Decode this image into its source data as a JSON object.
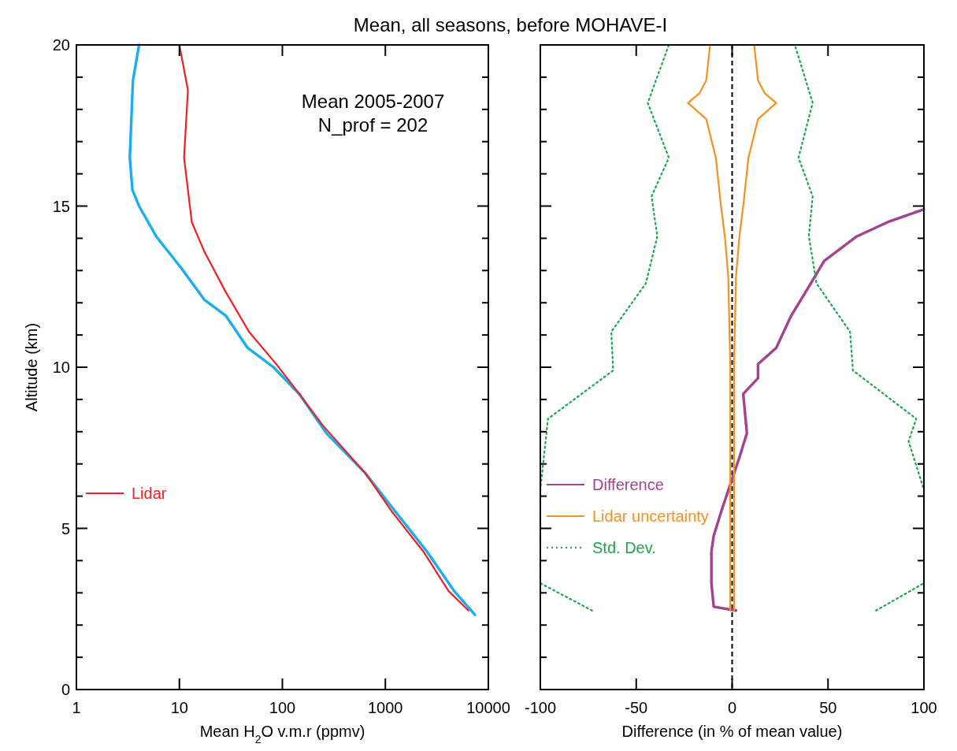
{
  "chart_data": [
    {
      "type": "line",
      "title": "Mean, all seasons, before MOHAVE-I",
      "xlabel": "Mean H$_{2}$O v.m.r (ppmv)",
      "ylabel": "Altitude (km)",
      "log": "x",
      "xlim": [
        1,
        10000
      ],
      "xticks": [
        1,
        10,
        100,
        1000,
        10000
      ],
      "ylim": [
        0,
        20
      ],
      "yticks": [
        0,
        {
          "value": 1,
          "label": null
        },
        {
          "value": 2,
          "label": null
        },
        {
          "value": 3,
          "label": null
        },
        {
          "value": 4,
          "label": null
        },
        5,
        {
          "value": 6,
          "label": null
        },
        {
          "value": 7,
          "label": null
        },
        {
          "value": 8,
          "label": null
        },
        {
          "value": 9,
          "label": null
        },
        10,
        {
          "value": 11,
          "label": null
        },
        {
          "value": 12,
          "label": null
        },
        {
          "value": 13,
          "label": null
        },
        {
          "value": 14,
          "label": null
        },
        15,
        {
          "value": 16,
          "label": null
        },
        {
          "value": 17,
          "label": null
        },
        {
          "value": 18,
          "label": null
        },
        {
          "value": 19,
          "label": null
        },
        20
      ],
      "grid": false,
      "legend": "left",
      "line_style": "solid",
      "marker": "none",
      "annotations": [
        "Mean 2005-2007",
        "N_prof = 202"
      ],
      "series": [
        {
          "color": "#1aaeef",
          "x": [
            4.06,
            3.54,
            3.3,
            3.5,
            4.06,
            5.95,
            10.3,
            17.4,
            28.2,
            46,
            82,
            146,
            268,
            636,
            1265,
            2540,
            4650,
            7400
          ],
          "values": [
            20,
            18.9,
            16.5,
            15.5,
            15,
            14.06,
            13.1,
            12.1,
            11.6,
            10.6,
            10,
            9.17,
            7.95,
            6.72,
            5.5,
            4.28,
            3.06,
            2.32
          ]
        },
        {
          "name": "Lidar",
          "color": "#ee2024",
          "x": [
            10,
            12.1,
            11.1,
            13.2,
            17.4,
            28,
            47.4,
            87,
            146,
            246,
            636,
            1170,
            2340,
            4100,
            6400
          ],
          "values": [
            20,
            18.6,
            16.5,
            14.5,
            13.6,
            12.35,
            11.1,
            10.1,
            9.17,
            8.2,
            6.72,
            5.5,
            4.28,
            3.06,
            2.45
          ]
        }
      ]
    },
    {
      "type": "line",
      "xlabel": "Difference (in % of mean value)",
      "xlim": [
        -100,
        100
      ],
      "xticks": [
        -100,
        -50,
        0,
        50,
        100
      ],
      "ylim": [
        0,
        20
      ],
      "yticks": [
        0,
        {
          "value": 1,
          "label": null
        },
        {
          "value": 2,
          "label": null
        },
        {
          "value": 3,
          "label": null
        },
        {
          "value": 4,
          "label": null
        },
        5,
        {
          "value": 6,
          "label": null
        },
        {
          "value": 7,
          "label": null
        },
        {
          "value": 8,
          "label": null
        },
        {
          "value": 9,
          "label": null
        },
        10,
        {
          "value": 11,
          "label": null
        },
        {
          "value": 12,
          "label": null
        },
        {
          "value": 13,
          "label": null
        },
        {
          "value": 14,
          "label": null
        },
        15,
        {
          "value": 16,
          "label": null
        },
        {
          "value": 17,
          "label": null
        },
        {
          "value": 18,
          "label": null
        },
        {
          "value": 19,
          "label": null
        },
        20
      ],
      "tick_labels": "x",
      "grid": false,
      "legend": "bottom left",
      "marker": "none",
      "ref_lines": [
        {
          "axis": "x",
          "value": 0,
          "color": "#000000",
          "line_style": "dashed"
        }
      ],
      "series": [
        {
          "name": "Difference",
          "color": "#a3438f",
          "line_style": "solid",
          "x": [
            2,
            -9.6,
            -10.8,
            -10.8,
            -9.6,
            -5.8,
            -1.9,
            3.8,
            7.7,
            5.8,
            13.5,
            13.5,
            23,
            30.8,
            38.5,
            48,
            65,
            81,
            100
          ],
          "values": [
            2.45,
            2.57,
            3.3,
            4.28,
            4.77,
            5.5,
            6.2,
            7.2,
            7.95,
            9.17,
            9.66,
            10.1,
            10.6,
            11.6,
            12.35,
            13.3,
            14.06,
            14.5,
            14.9
          ]
        },
        {
          "name": "Lidar uncertainty",
          "color": "#f7901e",
          "line_style": "solid",
          "x": [
            1,
            1,
            1,
            2,
            3.8,
            5.8,
            8.5,
            13.5,
            23,
            17,
            13.5,
            11.5
          ],
          "values": [
            2.45,
            6.2,
            10.1,
            12.8,
            14.06,
            15,
            16.5,
            17.7,
            18.2,
            18.5,
            18.9,
            20
          ]
        },
        {
          "color": "#f7901e",
          "line_style": "solid",
          "x": [
            -1,
            -1,
            -1,
            -2,
            -3.8,
            -5.8,
            -8.5,
            -13.5,
            -23,
            -17,
            -13.5,
            -11.5
          ],
          "values": [
            2.45,
            6.2,
            10.1,
            12.8,
            14.06,
            15,
            16.5,
            17.7,
            18.2,
            18.5,
            18.9,
            20
          ]
        },
        {
          "name": "Std. Dev.",
          "color": "#1aa64a",
          "line_style": "dotted",
          "x": [
            75,
            100,
            100,
            92,
            96,
            63,
            61.5,
            44,
            40,
            42,
            34.6,
            42,
            32.7
          ],
          "values": [
            2.45,
            3.3,
            6.2,
            7.7,
            8.4,
            9.9,
            11.1,
            12.6,
            14.06,
            15.3,
            16.5,
            18.2,
            20
          ]
        },
        {
          "color": "#1aa64a",
          "line_style": "dotted",
          "x": [
            -73,
            -100,
            -100,
            -96,
            -62,
            -63,
            -45,
            -39,
            -42,
            -33,
            -44,
            -33
          ],
          "values": [
            2.45,
            3.3,
            6.2,
            8.4,
            9.9,
            11.1,
            12.6,
            14.06,
            15.3,
            16.5,
            18.2,
            20
          ]
        }
      ]
    }
  ]
}
